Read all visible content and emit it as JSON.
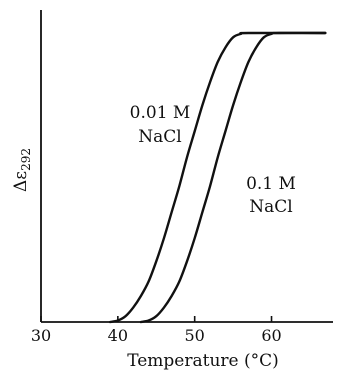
{
  "chart_data": {
    "type": "line",
    "title": "",
    "xlabel": "Temperature (°C)",
    "ylabel": "Δε292",
    "ylabel_parts": {
      "main": "Δε",
      "sub": "292"
    },
    "xlim": [
      30,
      68
    ],
    "ylim": [
      0,
      1
    ],
    "xticks": [
      30,
      40,
      50,
      60
    ],
    "yticks": [],
    "grid": false,
    "legend": "none",
    "series": [
      {
        "label_lines": [
          "0.01 M",
          "NaCl"
        ],
        "points": [
          [
            39,
            0.0
          ],
          [
            40,
            0.005
          ],
          [
            41,
            0.02
          ],
          [
            42,
            0.05
          ],
          [
            43,
            0.09
          ],
          [
            44,
            0.14
          ],
          [
            45,
            0.21
          ],
          [
            46,
            0.29
          ],
          [
            47,
            0.38
          ],
          [
            48,
            0.47
          ],
          [
            49,
            0.57
          ],
          [
            50,
            0.66
          ],
          [
            51,
            0.75
          ],
          [
            52,
            0.83
          ],
          [
            53,
            0.9
          ],
          [
            54,
            0.95
          ],
          [
            55,
            0.985
          ],
          [
            56,
            0.997
          ],
          [
            57,
            1.0
          ],
          [
            67,
            1.0
          ]
        ]
      },
      {
        "label_lines": [
          "0.1 M",
          "NaCl"
        ],
        "points": [
          [
            43,
            0.0
          ],
          [
            44,
            0.005
          ],
          [
            45,
            0.02
          ],
          [
            46,
            0.05
          ],
          [
            47,
            0.09
          ],
          [
            48,
            0.14
          ],
          [
            49,
            0.21
          ],
          [
            50,
            0.29
          ],
          [
            51,
            0.38
          ],
          [
            52,
            0.47
          ],
          [
            53,
            0.57
          ],
          [
            54,
            0.66
          ],
          [
            55,
            0.75
          ],
          [
            56,
            0.83
          ],
          [
            57,
            0.9
          ],
          [
            58,
            0.95
          ],
          [
            59,
            0.985
          ],
          [
            60,
            0.997
          ],
          [
            61,
            1.0
          ],
          [
            67,
            1.0
          ]
        ]
      }
    ]
  }
}
